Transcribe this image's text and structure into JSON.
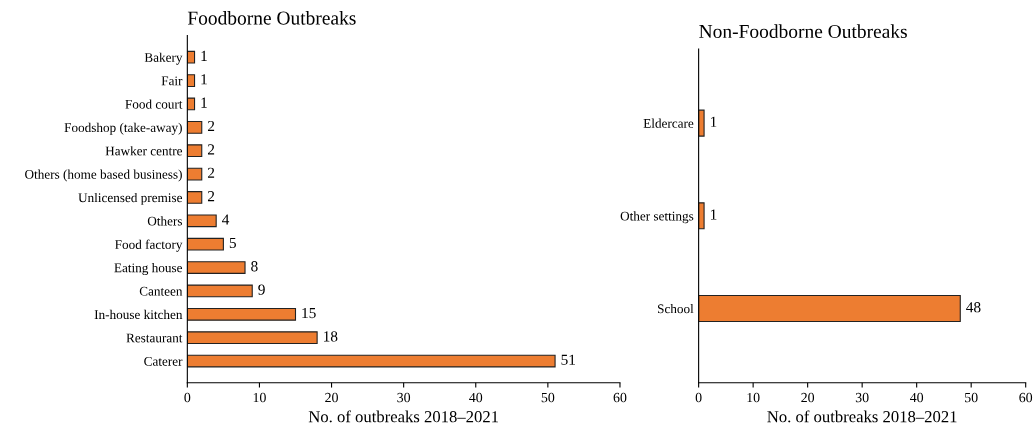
{
  "chart_data": [
    {
      "type": "bar",
      "orientation": "horizontal",
      "title": "Foodborne Outbreaks",
      "xlabel": "No. of outbreaks 2018–2021",
      "categories": [
        "Bakery",
        "Fair",
        "Food court",
        "Foodshop (take-away)",
        "Hawker centre",
        "Others (home based business)",
        "Unlicensed premise",
        "Others",
        "Food factory",
        "Eating house",
        "Canteen",
        "In-house kitchen",
        "Restaurant",
        "Caterer"
      ],
      "values": [
        1,
        1,
        1,
        2,
        2,
        2,
        2,
        4,
        5,
        8,
        9,
        15,
        18,
        51
      ],
      "color": "#ed7d31",
      "xlim": [
        0,
        60
      ],
      "xticks": [
        0,
        10,
        20,
        30,
        40,
        50,
        60
      ],
      "data_labels": true,
      "grid": false,
      "legend": false
    },
    {
      "type": "bar",
      "orientation": "horizontal",
      "title": "Non-Foodborne Outbreaks",
      "xlabel": "No. of outbreaks 2018–2021",
      "categories": [
        "Eldercare",
        "Other settings",
        "School"
      ],
      "values": [
        1,
        1,
        48
      ],
      "color": "#ed7d31",
      "xlim": [
        0,
        60
      ],
      "xticks": [
        0,
        10,
        20,
        30,
        40,
        50,
        60
      ],
      "data_labels": true,
      "grid": false,
      "legend": false
    }
  ]
}
